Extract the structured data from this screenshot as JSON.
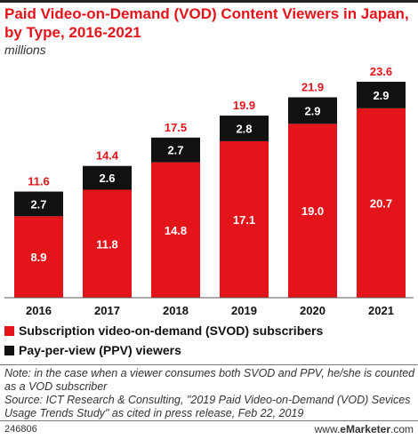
{
  "header": {
    "title": "Paid Video-on-Demand (VOD) Content Viewers in Japan, by Type, 2016-2021",
    "subtitle": "millions"
  },
  "chart_data": {
    "type": "bar",
    "stacked": true,
    "categories": [
      "2016",
      "2017",
      "2018",
      "2019",
      "2020",
      "2021"
    ],
    "series": [
      {
        "name": "Subscription video-on-demand (SVOD) subscribers",
        "values": [
          8.9,
          11.8,
          14.8,
          17.1,
          19.0,
          20.7
        ],
        "color": "#e4141b"
      },
      {
        "name": "Pay-per-view (PPV) viewers",
        "values": [
          2.7,
          2.6,
          2.7,
          2.8,
          2.9,
          2.9
        ],
        "color": "#111111"
      }
    ],
    "totals": [
      11.6,
      14.4,
      17.5,
      19.9,
      21.9,
      23.6
    ],
    "value_labels": {
      "svod": [
        "8.9",
        "11.8",
        "14.8",
        "17.1",
        "19.0",
        "20.7"
      ],
      "ppv": [
        "2.7",
        "2.6",
        "2.7",
        "2.8",
        "2.9",
        "2.9"
      ],
      "totals": [
        "11.6",
        "14.4",
        "17.5",
        "19.9",
        "21.9",
        "23.6"
      ]
    },
    "ylim": [
      0,
      23.6
    ],
    "grid": false,
    "legend_position": "bottom",
    "total_label_color": "#e4141b"
  },
  "legend": {
    "svod_label": "Subscription video-on-demand (SVOD) subscribers",
    "ppv_label": "Pay-per-view (PPV) viewers"
  },
  "note": "Note: in the case when a viewer consumes both SVOD and PPV, he/she is counted as a VOD subscriber\nSource: ICT Research & Consulting, \"2019 Paid Video-on-Demand (VOD) Sevices Usage Trends Study\" as cited in press release, Feb 22, 2019",
  "footer": {
    "chart_id": "246806",
    "brand_prefix": "www.",
    "brand_name": "eMarketer",
    "brand_suffix": ".com"
  }
}
